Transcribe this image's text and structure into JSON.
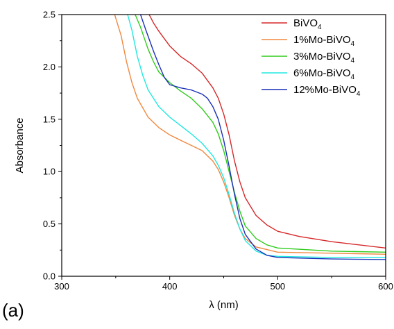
{
  "panel_label": "(a)",
  "chart_data": {
    "type": "line",
    "xlabel": "λ (nm)",
    "ylabel": "Absorbance",
    "xlim": [
      300,
      600
    ],
    "ylim": [
      0,
      2.5
    ],
    "x_ticks": [
      "300",
      "400",
      "500",
      "600"
    ],
    "y_ticks": [
      "0.0",
      "0.5",
      "1.0",
      "1.5",
      "2.0",
      "2.5"
    ],
    "grid": false,
    "legend_position": "top-right",
    "series": [
      {
        "name_main": "BiVO",
        "name_sub": "4",
        "color": "#d62728",
        "points": [
          [
            380,
            2.52
          ],
          [
            385,
            2.42
          ],
          [
            390,
            2.34
          ],
          [
            395,
            2.27
          ],
          [
            400,
            2.2
          ],
          [
            410,
            2.1
          ],
          [
            420,
            2.03
          ],
          [
            430,
            1.94
          ],
          [
            440,
            1.8
          ],
          [
            445,
            1.7
          ],
          [
            450,
            1.55
          ],
          [
            455,
            1.35
          ],
          [
            460,
            1.1
          ],
          [
            465,
            0.9
          ],
          [
            470,
            0.75
          ],
          [
            480,
            0.58
          ],
          [
            490,
            0.49
          ],
          [
            500,
            0.43
          ],
          [
            520,
            0.38
          ],
          [
            550,
            0.33
          ],
          [
            600,
            0.27
          ]
        ]
      },
      {
        "name_main": "1%Mo-BiVO",
        "name_sub": "4",
        "color": "#f0883e",
        "points": [
          [
            349,
            2.5
          ],
          [
            355,
            2.3
          ],
          [
            360,
            2.05
          ],
          [
            365,
            1.85
          ],
          [
            370,
            1.7
          ],
          [
            380,
            1.52
          ],
          [
            390,
            1.42
          ],
          [
            400,
            1.35
          ],
          [
            410,
            1.3
          ],
          [
            420,
            1.25
          ],
          [
            430,
            1.2
          ],
          [
            440,
            1.1
          ],
          [
            445,
            1.02
          ],
          [
            450,
            0.9
          ],
          [
            455,
            0.75
          ],
          [
            460,
            0.58
          ],
          [
            465,
            0.45
          ],
          [
            470,
            0.36
          ],
          [
            480,
            0.28
          ],
          [
            500,
            0.23
          ],
          [
            550,
            0.22
          ],
          [
            600,
            0.21
          ]
        ]
      },
      {
        "name_main": "3%Mo-BiVO",
        "name_sub": "4",
        "color": "#2ecc1a",
        "points": [
          [
            368,
            2.5
          ],
          [
            373,
            2.38
          ],
          [
            380,
            2.17
          ],
          [
            385,
            2.05
          ],
          [
            390,
            1.95
          ],
          [
            400,
            1.85
          ],
          [
            410,
            1.77
          ],
          [
            420,
            1.7
          ],
          [
            430,
            1.6
          ],
          [
            440,
            1.47
          ],
          [
            445,
            1.36
          ],
          [
            450,
            1.2
          ],
          [
            455,
            1.0
          ],
          [
            460,
            0.8
          ],
          [
            465,
            0.62
          ],
          [
            470,
            0.48
          ],
          [
            480,
            0.36
          ],
          [
            490,
            0.3
          ],
          [
            500,
            0.27
          ],
          [
            550,
            0.24
          ],
          [
            600,
            0.23
          ]
        ]
      },
      {
        "name_main": "6%Mo-BiVO",
        "name_sub": "4",
        "color": "#1fe8e0",
        "points": [
          [
            361,
            2.5
          ],
          [
            365,
            2.35
          ],
          [
            370,
            2.1
          ],
          [
            375,
            1.92
          ],
          [
            380,
            1.78
          ],
          [
            390,
            1.62
          ],
          [
            400,
            1.52
          ],
          [
            410,
            1.44
          ],
          [
            420,
            1.36
          ],
          [
            430,
            1.27
          ],
          [
            440,
            1.15
          ],
          [
            445,
            1.06
          ],
          [
            450,
            0.94
          ],
          [
            455,
            0.78
          ],
          [
            460,
            0.6
          ],
          [
            465,
            0.45
          ],
          [
            470,
            0.34
          ],
          [
            480,
            0.24
          ],
          [
            490,
            0.2
          ],
          [
            500,
            0.19
          ],
          [
            550,
            0.18
          ],
          [
            600,
            0.18
          ]
        ]
      },
      {
        "name_main": "12%Mo-BiVO",
        "name_sub": "4",
        "color": "#1a2fb8",
        "points": [
          [
            373,
            2.5
          ],
          [
            378,
            2.35
          ],
          [
            385,
            2.15
          ],
          [
            390,
            2.02
          ],
          [
            395,
            1.9
          ],
          [
            400,
            1.83
          ],
          [
            410,
            1.8
          ],
          [
            420,
            1.78
          ],
          [
            430,
            1.74
          ],
          [
            435,
            1.7
          ],
          [
            440,
            1.62
          ],
          [
            445,
            1.5
          ],
          [
            450,
            1.3
          ],
          [
            455,
            1.05
          ],
          [
            460,
            0.78
          ],
          [
            465,
            0.55
          ],
          [
            470,
            0.4
          ],
          [
            480,
            0.26
          ],
          [
            490,
            0.2
          ],
          [
            500,
            0.18
          ],
          [
            550,
            0.165
          ],
          [
            600,
            0.16
          ]
        ]
      }
    ]
  }
}
